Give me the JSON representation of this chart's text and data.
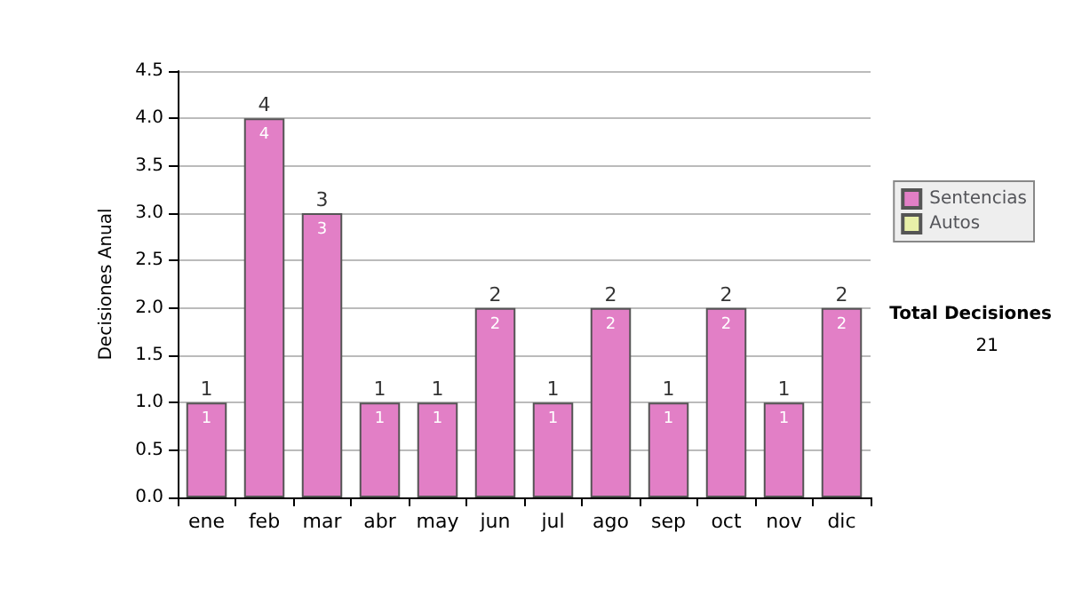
{
  "chart_data": {
    "type": "bar",
    "ylabel": "Decisiones Anual",
    "categories": [
      "ene",
      "feb",
      "mar",
      "abr",
      "may",
      "jun",
      "jul",
      "ago",
      "sep",
      "oct",
      "nov",
      "dic"
    ],
    "series": [
      {
        "name": "Sentencias",
        "color": "#e27fc6",
        "values": [
          1,
          4,
          3,
          1,
          1,
          2,
          1,
          2,
          1,
          2,
          1,
          2
        ],
        "value_labels": [
          "1",
          "4",
          "3",
          "1",
          "1",
          "2",
          "1",
          "2",
          "1",
          "2",
          "1",
          "2"
        ]
      },
      {
        "name": "Autos",
        "color": "#e8f0a8",
        "values": [
          0,
          0,
          0,
          0,
          0,
          0,
          0,
          0,
          0,
          0,
          0,
          0
        ]
      }
    ],
    "stacked": true,
    "totals": [
      "1",
      "4",
      "3",
      "1",
      "1",
      "2",
      "1",
      "2",
      "1",
      "2",
      "1",
      "2"
    ],
    "ylim": [
      0,
      4.5
    ],
    "yticks": [
      {
        "value": 0,
        "label": "0.0"
      },
      {
        "value": 0.5,
        "label": "0.5"
      },
      {
        "value": 1,
        "label": "1.0"
      },
      {
        "value": 1.5,
        "label": "1.5"
      },
      {
        "value": 2,
        "label": "2.0"
      },
      {
        "value": 2.5,
        "label": "2.5"
      },
      {
        "value": 3,
        "label": "3.0"
      },
      {
        "value": 3.5,
        "label": "3.5"
      },
      {
        "value": 4,
        "label": "4.0"
      },
      {
        "value": 4.5,
        "label": "4.5"
      }
    ],
    "grid": "y",
    "legend": "right",
    "annotations": [
      "Total Decisiones",
      "21"
    ]
  }
}
